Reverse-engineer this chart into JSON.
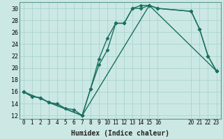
{
  "xlabel": "Humidex (Indice chaleur)",
  "line_color": "#1a7060",
  "bg_color": "#cce8e4",
  "grid_color": "#a8d4ce",
  "spine_color": "#5a9990",
  "xlim": [
    -0.5,
    23.5
  ],
  "ylim": [
    11.5,
    31
  ],
  "xticks": [
    0,
    1,
    2,
    3,
    4,
    5,
    6,
    7,
    8,
    9,
    10,
    11,
    12,
    13,
    14,
    15,
    16,
    20,
    21,
    22,
    23
  ],
  "yticks": [
    12,
    14,
    16,
    18,
    20,
    22,
    24,
    26,
    28,
    30
  ],
  "line1_x": [
    0,
    1,
    2,
    3,
    4,
    5,
    6,
    7,
    8,
    9,
    10,
    11,
    12,
    13,
    14,
    15,
    16,
    20,
    21,
    22,
    23
  ],
  "line1_y": [
    16,
    15.2,
    15,
    14.2,
    14,
    13.2,
    13,
    12,
    16.5,
    20.5,
    23,
    27.5,
    27.5,
    30,
    30,
    30.5,
    30,
    29.5,
    26.5,
    22,
    19.5
  ],
  "line2_x": [
    0,
    1,
    2,
    3,
    7,
    8,
    9,
    10,
    11,
    12,
    13,
    14,
    15,
    16,
    20,
    21,
    22,
    23
  ],
  "line2_y": [
    16,
    15.2,
    15,
    14.2,
    12,
    16.5,
    21.5,
    25,
    27.5,
    27.5,
    30,
    30.5,
    30.5,
    30,
    29.5,
    26.5,
    22,
    19.5
  ],
  "line3_x": [
    0,
    7,
    15,
    23
  ],
  "line3_y": [
    16,
    12,
    30.5,
    19.5
  ],
  "marker": "D",
  "markersize": 2.5,
  "linewidth": 1.0,
  "xlabel_fontsize": 7,
  "tick_fontsize": 5.5,
  "ytick_fontsize": 6
}
